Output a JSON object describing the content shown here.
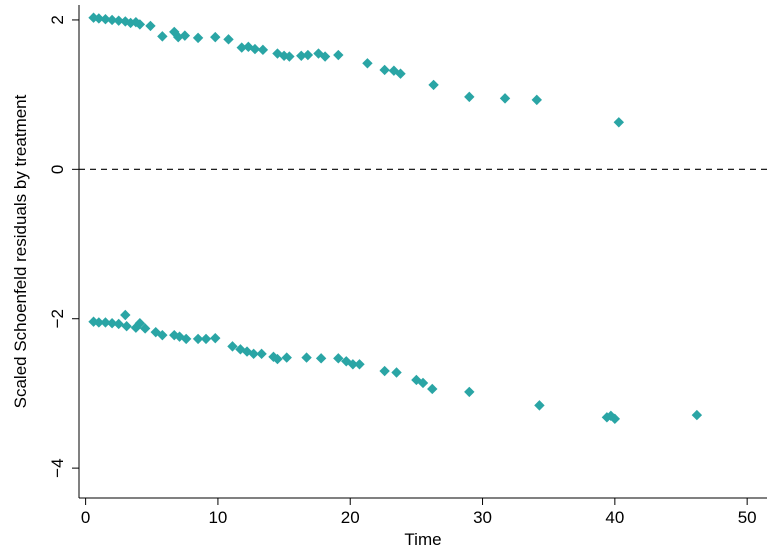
{
  "chart_data": {
    "type": "scatter",
    "title": "",
    "xlabel": "Time",
    "ylabel": "Scaled Schoenfeld residuals by treatment",
    "xlim": [
      -0.5,
      51.5
    ],
    "ylim": [
      -4.4,
      2.2
    ],
    "xticks": [
      0,
      10,
      20,
      30,
      40,
      50
    ],
    "yticks": [
      -4,
      -2,
      0,
      2
    ],
    "reference_line": {
      "y": 0,
      "style": "dashed"
    },
    "marker": {
      "shape": "diamond",
      "color": "#2aa5a5"
    },
    "grid": false,
    "legend": "none",
    "points": [
      {
        "x": 0.6,
        "y": 2.03
      },
      {
        "x": 1.0,
        "y": 2.02
      },
      {
        "x": 1.5,
        "y": 2.01
      },
      {
        "x": 2.0,
        "y": 2.0
      },
      {
        "x": 2.5,
        "y": 1.99
      },
      {
        "x": 3.0,
        "y": 1.98
      },
      {
        "x": 3.4,
        "y": 1.96
      },
      {
        "x": 3.8,
        "y": 1.97
      },
      {
        "x": 4.1,
        "y": 1.94
      },
      {
        "x": 4.9,
        "y": 1.92
      },
      {
        "x": 5.8,
        "y": 1.78
      },
      {
        "x": 6.7,
        "y": 1.84
      },
      {
        "x": 7.0,
        "y": 1.77
      },
      {
        "x": 7.5,
        "y": 1.79
      },
      {
        "x": 8.5,
        "y": 1.76
      },
      {
        "x": 9.8,
        "y": 1.77
      },
      {
        "x": 10.8,
        "y": 1.74
      },
      {
        "x": 11.8,
        "y": 1.63
      },
      {
        "x": 12.3,
        "y": 1.64
      },
      {
        "x": 12.8,
        "y": 1.61
      },
      {
        "x": 13.4,
        "y": 1.6
      },
      {
        "x": 14.5,
        "y": 1.55
      },
      {
        "x": 15.0,
        "y": 1.52
      },
      {
        "x": 15.4,
        "y": 1.51
      },
      {
        "x": 16.3,
        "y": 1.52
      },
      {
        "x": 16.8,
        "y": 1.53
      },
      {
        "x": 17.6,
        "y": 1.55
      },
      {
        "x": 18.1,
        "y": 1.51
      },
      {
        "x": 19.1,
        "y": 1.53
      },
      {
        "x": 21.3,
        "y": 1.42
      },
      {
        "x": 22.6,
        "y": 1.33
      },
      {
        "x": 23.3,
        "y": 1.32
      },
      {
        "x": 23.8,
        "y": 1.28
      },
      {
        "x": 26.3,
        "y": 1.13
      },
      {
        "x": 29.0,
        "y": 0.97
      },
      {
        "x": 31.7,
        "y": 0.95
      },
      {
        "x": 34.1,
        "y": 0.93
      },
      {
        "x": 40.3,
        "y": 0.63
      },
      {
        "x": 0.6,
        "y": -2.04
      },
      {
        "x": 1.0,
        "y": -2.05
      },
      {
        "x": 1.5,
        "y": -2.05
      },
      {
        "x": 2.0,
        "y": -2.06
      },
      {
        "x": 2.5,
        "y": -2.07
      },
      {
        "x": 3.0,
        "y": -1.95
      },
      {
        "x": 3.1,
        "y": -2.1
      },
      {
        "x": 3.8,
        "y": -2.12
      },
      {
        "x": 4.1,
        "y": -2.06
      },
      {
        "x": 4.5,
        "y": -2.13
      },
      {
        "x": 5.3,
        "y": -2.18
      },
      {
        "x": 5.8,
        "y": -2.22
      },
      {
        "x": 6.7,
        "y": -2.22
      },
      {
        "x": 7.1,
        "y": -2.24
      },
      {
        "x": 7.6,
        "y": -2.27
      },
      {
        "x": 8.5,
        "y": -2.27
      },
      {
        "x": 9.1,
        "y": -2.27
      },
      {
        "x": 9.8,
        "y": -2.26
      },
      {
        "x": 11.1,
        "y": -2.37
      },
      {
        "x": 11.7,
        "y": -2.41
      },
      {
        "x": 12.2,
        "y": -2.44
      },
      {
        "x": 12.7,
        "y": -2.47
      },
      {
        "x": 13.3,
        "y": -2.47
      },
      {
        "x": 14.2,
        "y": -2.51
      },
      {
        "x": 14.5,
        "y": -2.54
      },
      {
        "x": 15.2,
        "y": -2.52
      },
      {
        "x": 16.7,
        "y": -2.52
      },
      {
        "x": 17.8,
        "y": -2.53
      },
      {
        "x": 19.1,
        "y": -2.53
      },
      {
        "x": 19.7,
        "y": -2.57
      },
      {
        "x": 20.2,
        "y": -2.61
      },
      {
        "x": 20.7,
        "y": -2.61
      },
      {
        "x": 22.6,
        "y": -2.7
      },
      {
        "x": 23.5,
        "y": -2.72
      },
      {
        "x": 25.0,
        "y": -2.82
      },
      {
        "x": 25.5,
        "y": -2.86
      },
      {
        "x": 26.2,
        "y": -2.94
      },
      {
        "x": 29.0,
        "y": -2.98
      },
      {
        "x": 34.3,
        "y": -3.16
      },
      {
        "x": 39.4,
        "y": -3.32
      },
      {
        "x": 39.7,
        "y": -3.3
      },
      {
        "x": 40.0,
        "y": -3.34
      },
      {
        "x": 46.2,
        "y": -3.29
      }
    ]
  }
}
